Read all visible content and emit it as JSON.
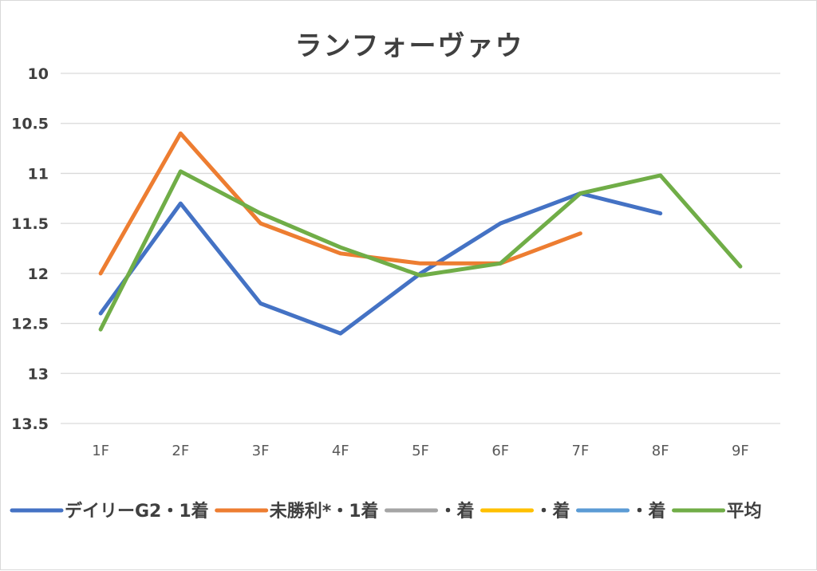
{
  "chart_data": {
    "type": "line",
    "title": "ランフォーヴァウ",
    "categories": [
      "1F",
      "2F",
      "3F",
      "4F",
      "5F",
      "6F",
      "7F",
      "8F",
      "9F"
    ],
    "ylim": [
      10,
      13.5
    ],
    "y_inverted": true,
    "yticks": [
      "10",
      "10.5",
      "11",
      "11.5",
      "12",
      "12.5",
      "13",
      "13.5"
    ],
    "grid": true,
    "legend_position": "bottom",
    "series": [
      {
        "name": "デイリーG2・1着",
        "color": "#4472C4",
        "values": [
          12.4,
          11.3,
          12.3,
          12.6,
          12.0,
          11.5,
          11.2,
          11.4,
          null
        ]
      },
      {
        "name": "未勝利*・1着",
        "color": "#ED7D31",
        "values": [
          12.0,
          10.6,
          11.5,
          11.8,
          11.9,
          11.9,
          11.6,
          null,
          null
        ]
      },
      {
        "name": "・着",
        "color": "#A5A5A5",
        "values": [
          null,
          null,
          null,
          null,
          null,
          null,
          null,
          null,
          null
        ]
      },
      {
        "name": "・着",
        "color": "#FFC000",
        "values": [
          null,
          null,
          null,
          null,
          null,
          null,
          null,
          null,
          null
        ]
      },
      {
        "name": "・着",
        "color": "#5B9BD5",
        "values": [
          null,
          null,
          null,
          null,
          null,
          null,
          null,
          null,
          null
        ]
      },
      {
        "name": "平均",
        "color": "#70AD47",
        "values": [
          12.56,
          10.98,
          11.4,
          11.74,
          12.02,
          11.9,
          11.2,
          11.02,
          11.93
        ]
      }
    ]
  }
}
